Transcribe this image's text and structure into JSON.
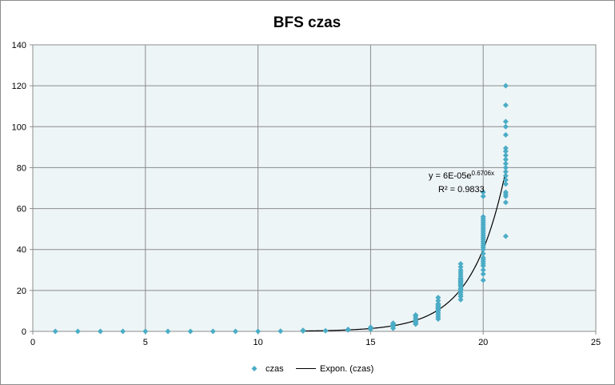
{
  "chart_data": {
    "type": "scatter",
    "title": "BFS czas",
    "xlabel": "",
    "ylabel": "",
    "xlim": [
      0,
      25
    ],
    "ylim": [
      0,
      140
    ],
    "xticks": [
      0,
      5,
      10,
      15,
      20,
      25
    ],
    "yticks": [
      0,
      20,
      40,
      60,
      80,
      100,
      120,
      140
    ],
    "grid": true,
    "legend_position": "bottom",
    "colors": {
      "marker": "#4bacc6",
      "trendline": "#000000",
      "plot_bg": "#eef5f6",
      "grid": "#8c8c8c"
    },
    "series": [
      {
        "name": "czas",
        "type": "scatter",
        "x": [
          1,
          2,
          3,
          4,
          5,
          6,
          7,
          8,
          9,
          10,
          11,
          12,
          12,
          13,
          14,
          14,
          15,
          15,
          15,
          16,
          16,
          16,
          16,
          16,
          17,
          17,
          17,
          17,
          17,
          17,
          17,
          17,
          18,
          18,
          18,
          18,
          18,
          18,
          18,
          18,
          18,
          18,
          18,
          18,
          18,
          18,
          19,
          19,
          19,
          19,
          19,
          19,
          19,
          19,
          19,
          19,
          19,
          19,
          19,
          19,
          19,
          19,
          19,
          19,
          19,
          19,
          19,
          19,
          20,
          20,
          20,
          20,
          20,
          20,
          20,
          20,
          20,
          20,
          20,
          20,
          20,
          20,
          20,
          20,
          20,
          20,
          20,
          20,
          20,
          20,
          20,
          20,
          20,
          20,
          20,
          20,
          21,
          21,
          21,
          21,
          21,
          21,
          21,
          21,
          21,
          21,
          21,
          21,
          21,
          21,
          21,
          21,
          21,
          21,
          21,
          21
        ],
        "y": [
          0,
          0,
          0,
          0,
          0,
          0,
          0,
          0,
          0,
          0,
          0.1,
          0.2,
          0.5,
          0.3,
          0.7,
          1.0,
          1.0,
          1.5,
          2.0,
          1.5,
          2.5,
          3.0,
          3.5,
          4.0,
          3.5,
          4.0,
          4.5,
          5.0,
          5.5,
          6.5,
          7.5,
          8.0,
          6.0,
          7.0,
          8.0,
          9.0,
          10.0,
          10.5,
          11.0,
          11.5,
          12.0,
          12.5,
          13.0,
          13.5,
          15.0,
          16.5,
          15.5,
          17.0,
          18.0,
          19.0,
          20.0,
          21.0,
          22.0,
          23.0,
          23.5,
          24.0,
          25.0,
          26.0,
          27.0,
          28.0,
          29.0,
          30.0,
          31.5,
          33.0,
          20.5,
          22.5,
          24.5,
          25.5,
          25.0,
          28.0,
          30.0,
          32.0,
          33.0,
          34.0,
          35.0,
          36.0,
          38.0,
          40.0,
          41.0,
          42.0,
          43.0,
          44.0,
          45.0,
          46.0,
          47.0,
          48.0,
          49.0,
          50.0,
          51.0,
          52.0,
          53.0,
          54.0,
          55.0,
          56.0,
          66.0,
          68.0,
          46.5,
          63.0,
          66.0,
          67.0,
          68.0,
          72.0,
          74.0,
          76.0,
          78.0,
          80.0,
          82.0,
          84.0,
          86.0,
          88.0,
          89.5,
          96.0,
          100.0,
          102.5,
          110.5,
          120.0
        ]
      },
      {
        "name": "Expon. (czas)",
        "type": "trendline",
        "model": "exponential",
        "coefficient": 6e-05,
        "rate": 0.6706,
        "x_range": [
          12,
          21
        ]
      }
    ],
    "annotations": {
      "equation_prefix": "y = 6E-05e",
      "equation_exponent": "0.6706x",
      "r_squared": "R² = 0.9833"
    }
  },
  "legend": {
    "items": [
      {
        "label": "czas",
        "symbol": "diamond"
      },
      {
        "label": "Expon. (czas)",
        "symbol": "line"
      }
    ]
  }
}
